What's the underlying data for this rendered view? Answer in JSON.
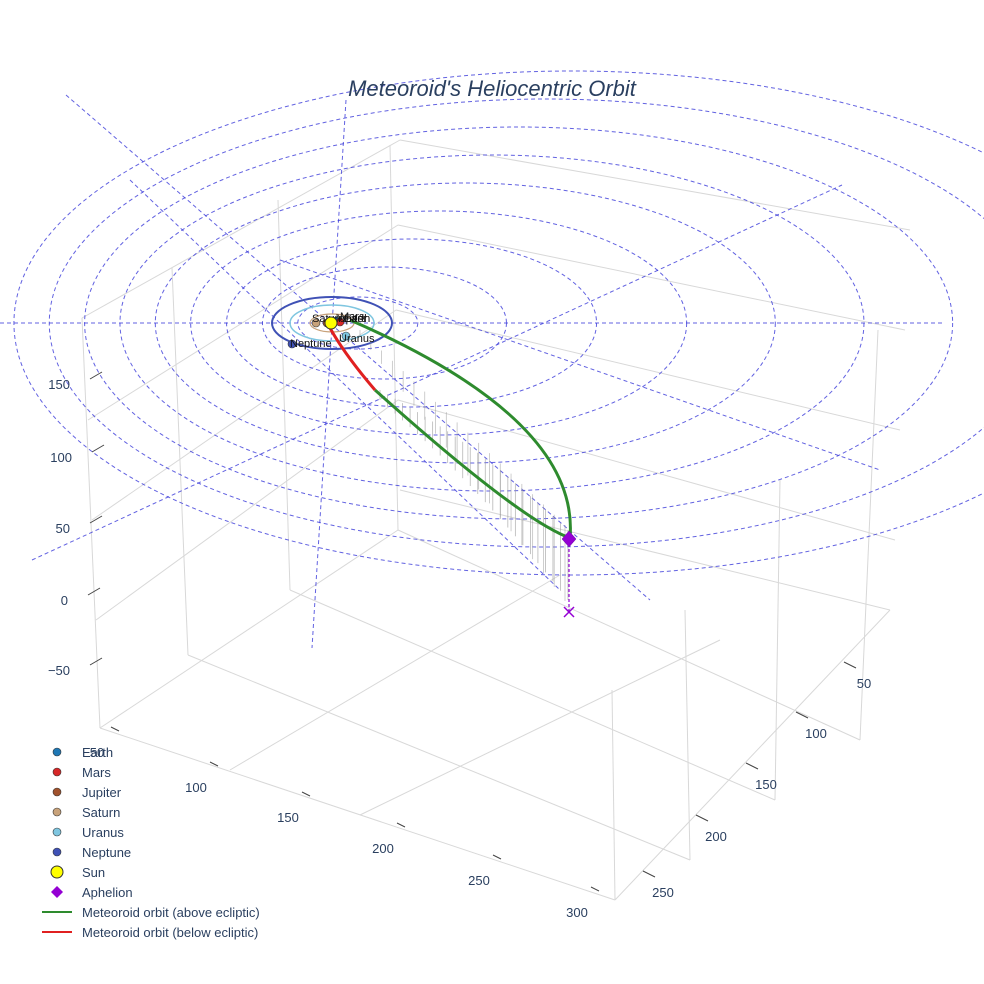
{
  "chart_data": {
    "type": "scatter3d",
    "title": "Meteoroid's Heliocentric Orbit",
    "axes": {
      "x_ticks": [
        "50",
        "100",
        "150",
        "200",
        "250",
        "300"
      ],
      "y_ticks": [
        "50",
        "100",
        "150",
        "200",
        "250"
      ],
      "z_ticks": [
        "−50",
        "0",
        "50",
        "100",
        "150"
      ]
    },
    "planets": [
      {
        "name": "Earth",
        "color": "#1f77b4"
      },
      {
        "name": "Mars",
        "color": "#d62728"
      },
      {
        "name": "Jupiter",
        "color": "#a0522d"
      },
      {
        "name": "Saturn",
        "color": "#c8a27a"
      },
      {
        "name": "Uranus",
        "color": "#7fc6e0"
      },
      {
        "name": "Neptune",
        "color": "#3f51b5"
      }
    ],
    "sun": {
      "name": "Sun",
      "color": "#ffff00"
    },
    "aphelion": {
      "name": "Aphelion",
      "color": "#9400d3"
    },
    "orbit_series": [
      {
        "name": "Meteoroid orbit (above ecliptic)",
        "color": "#2e8b2e"
      },
      {
        "name": "Meteoroid orbit (below ecliptic)",
        "color": "#e02020"
      }
    ],
    "legend": {
      "items": [
        {
          "label": "Earth",
          "symbol": "dot",
          "color": "#1f77b4"
        },
        {
          "label": "Mars",
          "symbol": "dot",
          "color": "#d62728"
        },
        {
          "label": "Jupiter",
          "symbol": "dot",
          "color": "#a0522d"
        },
        {
          "label": "Saturn",
          "symbol": "dot",
          "color": "#c8a27a"
        },
        {
          "label": "Uranus",
          "symbol": "dot",
          "color": "#7fc6e0"
        },
        {
          "label": "Neptune",
          "symbol": "dot",
          "color": "#3f51b5"
        },
        {
          "label": "Sun",
          "symbol": "big-dot",
          "color": "#ffff00"
        },
        {
          "label": "Aphelion",
          "symbol": "diamond",
          "color": "#9400d3"
        },
        {
          "label": "Meteoroid orbit (above ecliptic)",
          "symbol": "line",
          "color": "#2e8b2e"
        },
        {
          "label": "Meteoroid orbit (below ecliptic)",
          "symbol": "line",
          "color": "#e02020"
        }
      ],
      "position": "bottom-left"
    },
    "grid": true,
    "ecliptic_reference_rings": true
  }
}
